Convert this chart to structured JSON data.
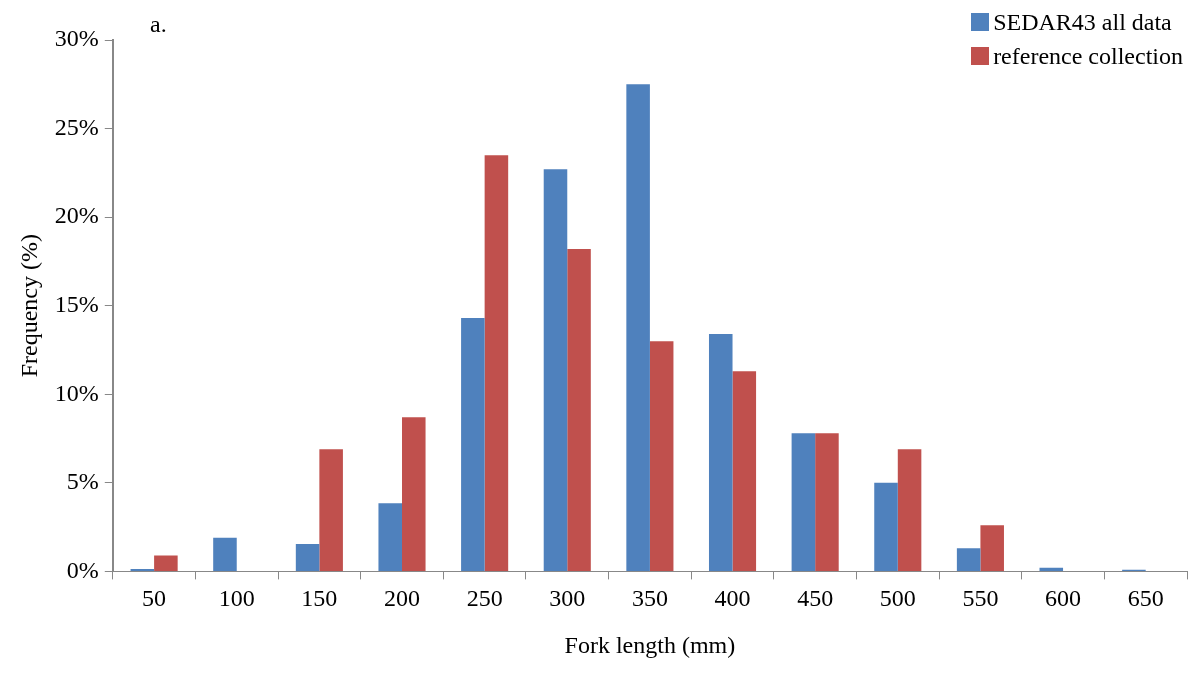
{
  "chart_data": {
    "type": "bar",
    "xlabel": "Fork length (mm)",
    "ylabel": "Frequency (%)",
    "annotations": [
      "a."
    ],
    "categories": [
      "50",
      "100",
      "150",
      "200",
      "250",
      "300",
      "350",
      "400",
      "450",
      "500",
      "550",
      "600",
      "650"
    ],
    "series": [
      {
        "name": "SEDAR43 all data",
        "color": "#4f81bd",
        "values": [
          0.14,
          1.9,
          1.55,
          3.85,
          14.3,
          22.7,
          27.5,
          13.4,
          7.8,
          5.0,
          1.3,
          0.2,
          0.1
        ]
      },
      {
        "name": "reference collection",
        "color": "#c0504d",
        "values": [
          0.9,
          0,
          6.9,
          8.7,
          23.5,
          18.2,
          13.0,
          11.3,
          7.8,
          6.9,
          2.6,
          0,
          0
        ]
      }
    ],
    "ylim": [
      0,
      30
    ],
    "yticks": [
      {
        "value": 0,
        "label": "0%"
      },
      {
        "value": 5,
        "label": "5%"
      },
      {
        "value": 10,
        "label": "10%"
      },
      {
        "value": 15,
        "label": "15%"
      },
      {
        "value": 20,
        "label": "20%"
      },
      {
        "value": 25,
        "label": "25%"
      },
      {
        "value": 30,
        "label": "30%"
      }
    ],
    "grid": false,
    "legend": "top right"
  }
}
